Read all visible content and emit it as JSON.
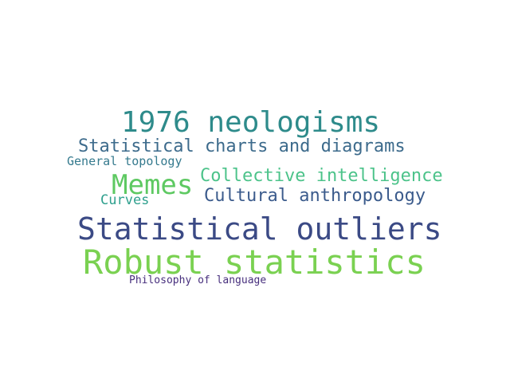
{
  "word_cloud": {
    "words": [
      {
        "text": "1976 neologisms",
        "color": "#2e8b8b"
      },
      {
        "text": "Statistical charts and diagrams",
        "color": "#3d6b8c"
      },
      {
        "text": "General topology",
        "color": "#357a8e"
      },
      {
        "text": "Collective intelligence",
        "color": "#4cc38a"
      },
      {
        "text": "Memes",
        "color": "#5ec962"
      },
      {
        "text": "Cultural anthropology",
        "color": "#3b5b8c"
      },
      {
        "text": "Curves",
        "color": "#2fa08e"
      },
      {
        "text": "Statistical outliers",
        "color": "#3b4a85"
      },
      {
        "text": "Robust statistics",
        "color": "#7ad151"
      },
      {
        "text": "Philosophy of language",
        "color": "#472f7d"
      }
    ]
  }
}
